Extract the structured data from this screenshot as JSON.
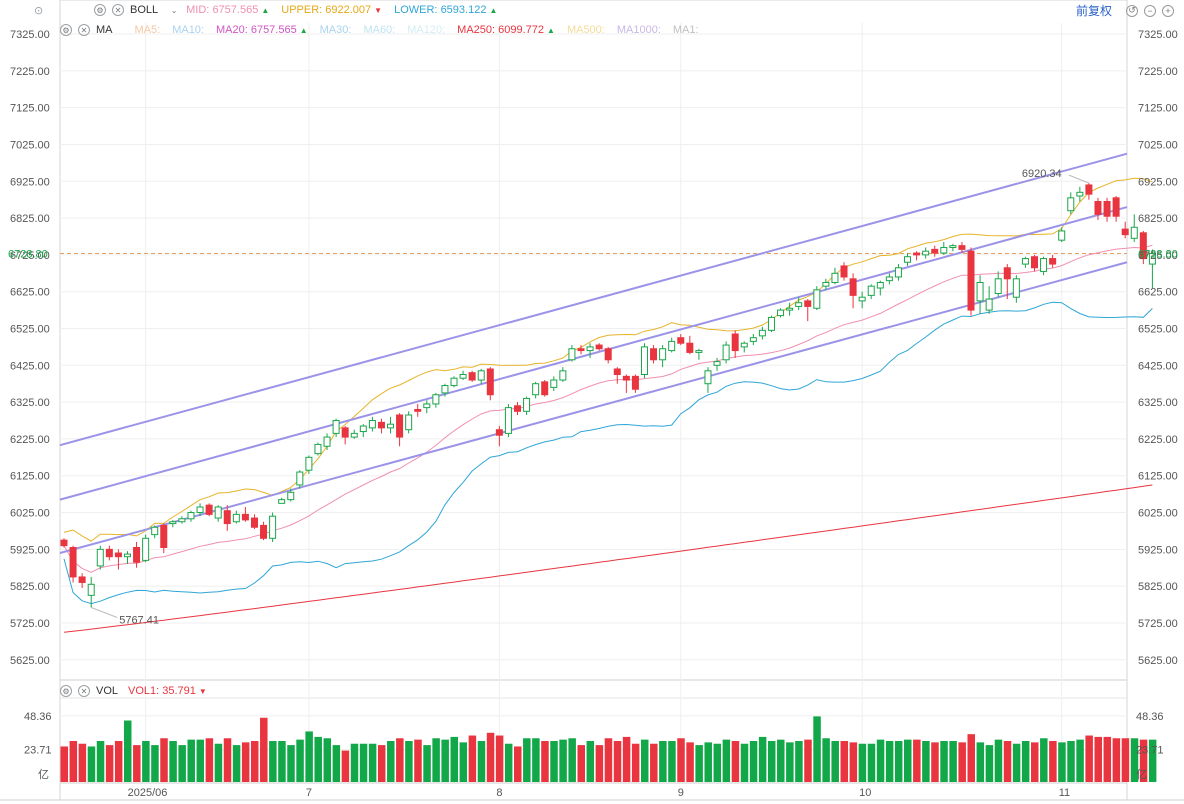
{
  "boll_legend": {
    "name": "BOLL",
    "mid_label": "MID:",
    "mid_value": "6757.565",
    "mid_color": "#f08fb0",
    "upper_label": "UPPER:",
    "upper_value": "6922.007",
    "upper_color": "#e6a817",
    "lower_label": "LOWER:",
    "lower_value": "6593.122",
    "lower_color": "#2fa6d6"
  },
  "ma_legend": {
    "name": "MA",
    "items": [
      {
        "label": "MA5:",
        "value": "",
        "color": "#f6c7a5"
      },
      {
        "label": "MA10:",
        "value": "",
        "color": "#a9d3ef"
      },
      {
        "label": "MA20:",
        "value": "6757.565",
        "color": "#d255c5",
        "arrow": "up"
      },
      {
        "label": "MA30:",
        "value": "",
        "color": "#a9d3ef"
      },
      {
        "label": "MA60:",
        "value": "",
        "color": "#bfe4ef"
      },
      {
        "label": "MA120:",
        "value": "",
        "color": "#d2edf5"
      },
      {
        "label": "MA250:",
        "value": "6099.772",
        "color": "#e8353f",
        "arrow": "up"
      },
      {
        "label": "MA500:",
        "value": "",
        "color": "#f5dc99"
      },
      {
        "label": "MA1000:",
        "value": "",
        "color": "#c9b8e6"
      },
      {
        "label": "MA1:",
        "value": "",
        "color": "#c0c0c0"
      }
    ]
  },
  "vol_legend": {
    "name": "VOL",
    "vol1_label": "VOL1:",
    "vol1_value": "35.791",
    "vol1_color": "#e8353f"
  },
  "controls": {
    "fuquan_label": "前复权"
  },
  "chart_data": {
    "type": "candlestick",
    "price_axis": {
      "ticks": [
        "7325.00",
        "7225.00",
        "7125.00",
        "7025.00",
        "6925.00",
        "6825.00",
        "6725.00",
        "6625.00",
        "6525.00",
        "6425.00",
        "6325.00",
        "6225.00",
        "6125.00",
        "6025.00",
        "5925.00",
        "5825.00",
        "5725.00",
        "5625.00"
      ],
      "range": [
        5570,
        7355
      ]
    },
    "current_price": "6728.80",
    "annotations": [
      {
        "text": "6920.34"
      },
      {
        "text": "5767.41"
      }
    ],
    "volume_axis": {
      "ticks": [
        "48.36",
        "23.71"
      ],
      "unit": "亿",
      "max": 60
    },
    "x_labels": [
      "2025/06",
      "7",
      "8",
      "9",
      "10",
      "11"
    ],
    "up_color": "#1aa64a",
    "down_color": "#e8353f",
    "candles": [
      {
        "o": 5950,
        "h": 5955,
        "l": 5930,
        "c": 5935,
        "v": 26
      },
      {
        "o": 5930,
        "h": 5935,
        "l": 5835,
        "c": 5850,
        "v": 30
      },
      {
        "o": 5850,
        "h": 5860,
        "l": 5820,
        "c": 5835,
        "v": 28
      },
      {
        "o": 5800,
        "h": 5850,
        "l": 5767,
        "c": 5830,
        "v": 26
      },
      {
        "o": 5880,
        "h": 5935,
        "l": 5870,
        "c": 5925,
        "v": 30
      },
      {
        "o": 5925,
        "h": 5935,
        "l": 5895,
        "c": 5905,
        "v": 27
      },
      {
        "o": 5915,
        "h": 5925,
        "l": 5870,
        "c": 5905,
        "v": 30
      },
      {
        "o": 5905,
        "h": 5920,
        "l": 5885,
        "c": 5912,
        "v": 45
      },
      {
        "o": 5930,
        "h": 5945,
        "l": 5875,
        "c": 5890,
        "v": 27
      },
      {
        "o": 5895,
        "h": 5965,
        "l": 5890,
        "c": 5955,
        "v": 30
      },
      {
        "o": 5965,
        "h": 5990,
        "l": 5955,
        "c": 5985,
        "v": 27
      },
      {
        "o": 5990,
        "h": 5995,
        "l": 5915,
        "c": 5930,
        "v": 32
      },
      {
        "o": 5995,
        "h": 6005,
        "l": 5985,
        "c": 6000,
        "v": 30
      },
      {
        "o": 6000,
        "h": 6015,
        "l": 5995,
        "c": 6008,
        "v": 27
      },
      {
        "o": 6008,
        "h": 6030,
        "l": 6000,
        "c": 6025,
        "v": 31
      },
      {
        "o": 6025,
        "h": 6050,
        "l": 6015,
        "c": 6040,
        "v": 31
      },
      {
        "o": 6045,
        "h": 6050,
        "l": 6015,
        "c": 6020,
        "v": 32
      },
      {
        "o": 6010,
        "h": 6045,
        "l": 6000,
        "c": 6040,
        "v": 28
      },
      {
        "o": 6030,
        "h": 6045,
        "l": 5975,
        "c": 5995,
        "v": 32
      },
      {
        "o": 6000,
        "h": 6030,
        "l": 5995,
        "c": 6020,
        "v": 27
      },
      {
        "o": 6020,
        "h": 6040,
        "l": 6000,
        "c": 6005,
        "v": 29
      },
      {
        "o": 6010,
        "h": 6020,
        "l": 5980,
        "c": 5985,
        "v": 30
      },
      {
        "o": 5990,
        "h": 6000,
        "l": 5950,
        "c": 5955,
        "v": 47
      },
      {
        "o": 5955,
        "h": 6025,
        "l": 5945,
        "c": 6015,
        "v": 30
      },
      {
        "o": 6050,
        "h": 6065,
        "l": 6050,
        "c": 6060,
        "v": 30
      },
      {
        "o": 6060,
        "h": 6090,
        "l": 6055,
        "c": 6080,
        "v": 27
      },
      {
        "o": 6100,
        "h": 6140,
        "l": 6090,
        "c": 6135,
        "v": 31
      },
      {
        "o": 6140,
        "h": 6180,
        "l": 6130,
        "c": 6175,
        "v": 37
      },
      {
        "o": 6185,
        "h": 6215,
        "l": 6180,
        "c": 6210,
        "v": 33
      },
      {
        "o": 6205,
        "h": 6240,
        "l": 6195,
        "c": 6230,
        "v": 32
      },
      {
        "o": 6240,
        "h": 6280,
        "l": 6230,
        "c": 6275,
        "v": 27
      },
      {
        "o": 6255,
        "h": 6260,
        "l": 6210,
        "c": 6230,
        "v": 23
      },
      {
        "o": 6230,
        "h": 6250,
        "l": 6225,
        "c": 6240,
        "v": 28
      },
      {
        "o": 6245,
        "h": 6265,
        "l": 6230,
        "c": 6260,
        "v": 28
      },
      {
        "o": 6255,
        "h": 6285,
        "l": 6245,
        "c": 6275,
        "v": 28
      },
      {
        "o": 6270,
        "h": 6280,
        "l": 6240,
        "c": 6255,
        "v": 27
      },
      {
        "o": 6255,
        "h": 6285,
        "l": 6240,
        "c": 6265,
        "v": 30
      },
      {
        "o": 6290,
        "h": 6295,
        "l": 6205,
        "c": 6230,
        "v": 32
      },
      {
        "o": 6250,
        "h": 6300,
        "l": 6240,
        "c": 6290,
        "v": 30
      },
      {
        "o": 6305,
        "h": 6320,
        "l": 6285,
        "c": 6300,
        "v": 31
      },
      {
        "o": 6310,
        "h": 6330,
        "l": 6295,
        "c": 6320,
        "v": 27
      },
      {
        "o": 6320,
        "h": 6350,
        "l": 6310,
        "c": 6345,
        "v": 32
      },
      {
        "o": 6350,
        "h": 6375,
        "l": 6340,
        "c": 6370,
        "v": 31
      },
      {
        "o": 6370,
        "h": 6395,
        "l": 6365,
        "c": 6390,
        "v": 33
      },
      {
        "o": 6390,
        "h": 6410,
        "l": 6385,
        "c": 6400,
        "v": 29
      },
      {
        "o": 6405,
        "h": 6410,
        "l": 6380,
        "c": 6385,
        "v": 34
      },
      {
        "o": 6385,
        "h": 6415,
        "l": 6375,
        "c": 6410,
        "v": 30
      },
      {
        "o": 6415,
        "h": 6420,
        "l": 6330,
        "c": 6345,
        "v": 36
      },
      {
        "o": 6250,
        "h": 6260,
        "l": 6205,
        "c": 6235,
        "v": 34
      },
      {
        "o": 6240,
        "h": 6320,
        "l": 6230,
        "c": 6310,
        "v": 28
      },
      {
        "o": 6315,
        "h": 6325,
        "l": 6290,
        "c": 6300,
        "v": 26
      },
      {
        "o": 6300,
        "h": 6340,
        "l": 6290,
        "c": 6335,
        "v": 32
      },
      {
        "o": 6345,
        "h": 6380,
        "l": 6335,
        "c": 6375,
        "v": 32
      },
      {
        "o": 6380,
        "h": 6385,
        "l": 6340,
        "c": 6345,
        "v": 30
      },
      {
        "o": 6365,
        "h": 6395,
        "l": 6355,
        "c": 6385,
        "v": 30
      },
      {
        "o": 6385,
        "h": 6420,
        "l": 6380,
        "c": 6410,
        "v": 31
      },
      {
        "o": 6440,
        "h": 6480,
        "l": 6435,
        "c": 6470,
        "v": 32
      },
      {
        "o": 6470,
        "h": 6480,
        "l": 6455,
        "c": 6465,
        "v": 27
      },
      {
        "o": 6465,
        "h": 6485,
        "l": 6445,
        "c": 6475,
        "v": 30
      },
      {
        "o": 6480,
        "h": 6485,
        "l": 6465,
        "c": 6470,
        "v": 27
      },
      {
        "o": 6470,
        "h": 6475,
        "l": 6430,
        "c": 6440,
        "v": 32
      },
      {
        "o": 6415,
        "h": 6420,
        "l": 6375,
        "c": 6400,
        "v": 30
      },
      {
        "o": 6395,
        "h": 6400,
        "l": 6350,
        "c": 6385,
        "v": 33
      },
      {
        "o": 6395,
        "h": 6400,
        "l": 6350,
        "c": 6360,
        "v": 28
      },
      {
        "o": 6400,
        "h": 6485,
        "l": 6390,
        "c": 6475,
        "v": 31
      },
      {
        "o": 6470,
        "h": 6480,
        "l": 6430,
        "c": 6440,
        "v": 28
      },
      {
        "o": 6440,
        "h": 6480,
        "l": 6420,
        "c": 6470,
        "v": 30
      },
      {
        "o": 6465,
        "h": 6500,
        "l": 6460,
        "c": 6490,
        "v": 30
      },
      {
        "o": 6500,
        "h": 6510,
        "l": 6480,
        "c": 6485,
        "v": 32
      },
      {
        "o": 6485,
        "h": 6505,
        "l": 6455,
        "c": 6460,
        "v": 29
      },
      {
        "o": 6460,
        "h": 6470,
        "l": 6440,
        "c": 6465,
        "v": 27
      },
      {
        "o": 6375,
        "h": 6420,
        "l": 6350,
        "c": 6410,
        "v": 29
      },
      {
        "o": 6425,
        "h": 6445,
        "l": 6410,
        "c": 6435,
        "v": 28
      },
      {
        "o": 6440,
        "h": 6490,
        "l": 6430,
        "c": 6480,
        "v": 31
      },
      {
        "o": 6510,
        "h": 6520,
        "l": 6445,
        "c": 6465,
        "v": 30
      },
      {
        "o": 6475,
        "h": 6490,
        "l": 6460,
        "c": 6485,
        "v": 28
      },
      {
        "o": 6490,
        "h": 6510,
        "l": 6480,
        "c": 6500,
        "v": 30
      },
      {
        "o": 6505,
        "h": 6530,
        "l": 6495,
        "c": 6520,
        "v": 33
      },
      {
        "o": 6520,
        "h": 6560,
        "l": 6515,
        "c": 6555,
        "v": 30
      },
      {
        "o": 6560,
        "h": 6580,
        "l": 6555,
        "c": 6575,
        "v": 31
      },
      {
        "o": 6575,
        "h": 6595,
        "l": 6560,
        "c": 6580,
        "v": 29
      },
      {
        "o": 6585,
        "h": 6610,
        "l": 6575,
        "c": 6595,
        "v": 30
      },
      {
        "o": 6600,
        "h": 6605,
        "l": 6545,
        "c": 6585,
        "v": 31
      },
      {
        "o": 6580,
        "h": 6640,
        "l": 6575,
        "c": 6630,
        "v": 48
      },
      {
        "o": 6640,
        "h": 6660,
        "l": 6630,
        "c": 6650,
        "v": 32
      },
      {
        "o": 6650,
        "h": 6690,
        "l": 6645,
        "c": 6675,
        "v": 30
      },
      {
        "o": 6695,
        "h": 6705,
        "l": 6655,
        "c": 6665,
        "v": 30
      },
      {
        "o": 6660,
        "h": 6675,
        "l": 6580,
        "c": 6615,
        "v": 29
      },
      {
        "o": 6600,
        "h": 6625,
        "l": 6580,
        "c": 6610,
        "v": 28
      },
      {
        "o": 6615,
        "h": 6645,
        "l": 6605,
        "c": 6640,
        "v": 28
      },
      {
        "o": 6635,
        "h": 6655,
        "l": 6615,
        "c": 6650,
        "v": 31
      },
      {
        "o": 6655,
        "h": 6675,
        "l": 6645,
        "c": 6665,
        "v": 30
      },
      {
        "o": 6665,
        "h": 6700,
        "l": 6655,
        "c": 6690,
        "v": 30
      },
      {
        "o": 6705,
        "h": 6730,
        "l": 6695,
        "c": 6720,
        "v": 31
      },
      {
        "o": 6730,
        "h": 6735,
        "l": 6710,
        "c": 6725,
        "v": 31
      },
      {
        "o": 6725,
        "h": 6745,
        "l": 6715,
        "c": 6735,
        "v": 30
      },
      {
        "o": 6740,
        "h": 6750,
        "l": 6720,
        "c": 6730,
        "v": 29
      },
      {
        "o": 6730,
        "h": 6760,
        "l": 6725,
        "c": 6745,
        "v": 30
      },
      {
        "o": 6745,
        "h": 6755,
        "l": 6735,
        "c": 6750,
        "v": 30
      },
      {
        "o": 6750,
        "h": 6760,
        "l": 6730,
        "c": 6740,
        "v": 29
      },
      {
        "o": 6735,
        "h": 6745,
        "l": 6560,
        "c": 6575,
        "v": 35
      },
      {
        "o": 6600,
        "h": 6670,
        "l": 6565,
        "c": 6650,
        "v": 29
      },
      {
        "o": 6575,
        "h": 6640,
        "l": 6565,
        "c": 6605,
        "v": 27
      },
      {
        "o": 6620,
        "h": 6680,
        "l": 6610,
        "c": 6660,
        "v": 31
      },
      {
        "o": 6690,
        "h": 6700,
        "l": 6605,
        "c": 6660,
        "v": 30
      },
      {
        "o": 6610,
        "h": 6670,
        "l": 6595,
        "c": 6660,
        "v": 28
      },
      {
        "o": 6700,
        "h": 6720,
        "l": 6690,
        "c": 6715,
        "v": 30
      },
      {
        "o": 6720,
        "h": 6725,
        "l": 6680,
        "c": 6690,
        "v": 29
      },
      {
        "o": 6680,
        "h": 6720,
        "l": 6670,
        "c": 6715,
        "v": 32
      },
      {
        "o": 6715,
        "h": 6725,
        "l": 6690,
        "c": 6700,
        "v": 30
      },
      {
        "o": 6765,
        "h": 6800,
        "l": 6760,
        "c": 6790,
        "v": 29
      },
      {
        "o": 6845,
        "h": 6895,
        "l": 6835,
        "c": 6880,
        "v": 30
      },
      {
        "o": 6885,
        "h": 6910,
        "l": 6870,
        "c": 6895,
        "v": 31
      },
      {
        "o": 6915,
        "h": 6920,
        "l": 6875,
        "c": 6890,
        "v": 34
      },
      {
        "o": 6870,
        "h": 6880,
        "l": 6820,
        "c": 6835,
        "v": 33
      },
      {
        "o": 6870,
        "h": 6880,
        "l": 6815,
        "c": 6830,
        "v": 33
      },
      {
        "o": 6880,
        "h": 6885,
        "l": 6815,
        "c": 6830,
        "v": 32
      },
      {
        "o": 6795,
        "h": 6815,
        "l": 6770,
        "c": 6780,
        "v": 32
      },
      {
        "o": 6770,
        "h": 6835,
        "l": 6760,
        "c": 6800,
        "v": 32
      },
      {
        "o": 6785,
        "h": 6790,
        "l": 6700,
        "c": 6715,
        "v": 31
      },
      {
        "o": 6700,
        "h": 6740,
        "l": 6635,
        "c": 6728.8,
        "v": 31
      }
    ]
  }
}
